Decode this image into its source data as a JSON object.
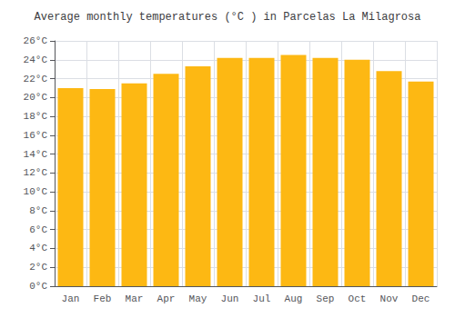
{
  "chart_data": {
    "type": "bar",
    "title": "Average monthly temperatures (°C ) in Parcelas La Milagrosa",
    "categories": [
      "Jan",
      "Feb",
      "Mar",
      "Apr",
      "May",
      "Jun",
      "Jul",
      "Aug",
      "Sep",
      "Oct",
      "Nov",
      "Dec"
    ],
    "values": [
      21.0,
      20.9,
      21.5,
      22.5,
      23.3,
      24.2,
      24.2,
      24.5,
      24.2,
      24.0,
      22.8,
      21.7
    ],
    "color": "#FDB813",
    "ylim": [
      0,
      26
    ],
    "yticks": [
      {
        "value": 0,
        "label": "0°C"
      },
      {
        "value": 2,
        "label": "2°C"
      },
      {
        "value": 4,
        "label": "4°C"
      },
      {
        "value": 6,
        "label": "6°C"
      },
      {
        "value": 8,
        "label": "8°C"
      },
      {
        "value": 10,
        "label": "10°C"
      },
      {
        "value": 12,
        "label": "12°C"
      },
      {
        "value": 14,
        "label": "14°C"
      },
      {
        "value": 16,
        "label": "16°C"
      },
      {
        "value": 18,
        "label": "18°C"
      },
      {
        "value": 20,
        "label": "20°C"
      },
      {
        "value": 22,
        "label": "22°C"
      },
      {
        "value": 24,
        "label": "24°C"
      },
      {
        "value": 26,
        "label": "26°C"
      }
    ],
    "grid": true
  }
}
